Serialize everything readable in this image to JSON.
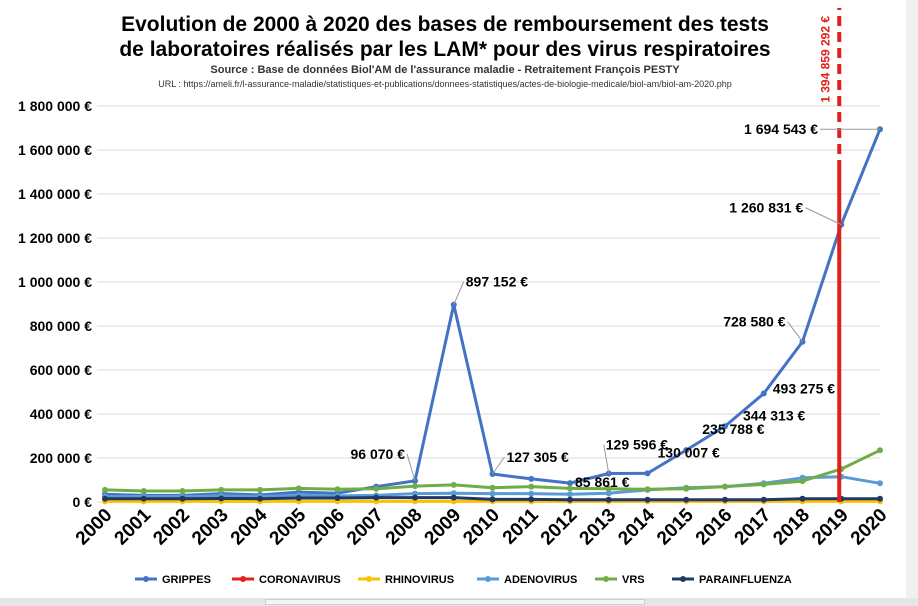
{
  "title_line1": "Evolution de 2000 à 2020 des bases de remboursement des tests",
  "title_line2": "de laboratoires réalisés par les LAM* pour des virus respiratoires",
  "subtitle": "Source : Base de données Biol'AM de l'assurance maladie - Retraitement François PESTY",
  "url": "URL : https://ameli.fr/l-assurance-maladie/statistiques-et-publications/donnees-statistiques/actes-de-biologie-medicale/biol-am/biol-am-2020.php",
  "chart_data": {
    "type": "line",
    "x": [
      "2000",
      "2001",
      "2002",
      "2003",
      "2004",
      "2005",
      "2006",
      "2007",
      "2008",
      "2009",
      "2010",
      "2011",
      "2012",
      "2013",
      "2014",
      "2015",
      "2016",
      "2017",
      "2018",
      "2019",
      "2020"
    ],
    "ylim": [
      0,
      1800000
    ],
    "yticks": [
      0,
      200000,
      400000,
      600000,
      800000,
      1000000,
      1200000,
      1400000,
      1600000,
      1800000
    ],
    "ytick_labels": [
      "0 €",
      "200 000 €",
      "400 000 €",
      "600 000 €",
      "800 000 €",
      "1 000 000 €",
      "1 200 000 €",
      "1 400 000 €",
      "1 600 000 €",
      "1 800 000 €"
    ],
    "grid": true,
    "legend_position": "bottom",
    "series": [
      {
        "name": "GRIPPES",
        "color": "#4472c4",
        "values": [
          35000,
          30000,
          30000,
          38000,
          32000,
          45000,
          40000,
          70000,
          96070,
          897152,
          127305,
          105000,
          85861,
          129596,
          130007,
          235788,
          344313,
          493275,
          728580,
          1260831,
          1694543
        ]
      },
      {
        "name": "CORONAVIRUS",
        "color": "#e0201b",
        "values": [
          null,
          null,
          null,
          null,
          null,
          null,
          null,
          null,
          null,
          null,
          null,
          null,
          null,
          null,
          null,
          null,
          null,
          null,
          null,
          null,
          null
        ]
      },
      {
        "name": "RHINOVIRUS",
        "color": "#ffc000",
        "values": [
          3000,
          3000,
          3000,
          3000,
          3000,
          3000,
          3000,
          3000,
          3000,
          3000,
          3000,
          3000,
          3000,
          3000,
          3000,
          3000,
          3000,
          3000,
          3000,
          3000,
          3000
        ]
      },
      {
        "name": "ADENOVIRUS",
        "color": "#5b9bd5",
        "values": [
          25000,
          25000,
          25000,
          28000,
          25000,
          30000,
          28000,
          30000,
          38000,
          40000,
          38000,
          38000,
          35000,
          40000,
          55000,
          65000,
          70000,
          85000,
          110000,
          115000,
          85000
        ]
      },
      {
        "name": "VRS",
        "color": "#70ad47",
        "values": [
          55000,
          50000,
          50000,
          55000,
          55000,
          62000,
          58000,
          60000,
          72000,
          78000,
          65000,
          70000,
          62000,
          60000,
          58000,
          60000,
          70000,
          80000,
          95000,
          150000,
          235000
        ]
      },
      {
        "name": "PARAINFLUENZA",
        "color": "#1f3864",
        "values": [
          15000,
          15000,
          15000,
          16000,
          15000,
          18000,
          18000,
          20000,
          20000,
          20000,
          12000,
          12000,
          10000,
          10000,
          10000,
          10000,
          10000,
          10000,
          15000,
          15000,
          15000
        ]
      }
    ],
    "data_labels": [
      {
        "series": "GRIPPES",
        "x": "2008",
        "text": "96 070 €"
      },
      {
        "series": "GRIPPES",
        "x": "2009",
        "text": "897 152 €"
      },
      {
        "series": "GRIPPES",
        "x": "2010",
        "text": "127 305 €"
      },
      {
        "series": "GRIPPES",
        "x": "2012",
        "text": "85 861 €"
      },
      {
        "series": "GRIPPES",
        "x": "2013",
        "text": "129 596 €"
      },
      {
        "series": "GRIPPES",
        "x": "2014",
        "text": "130 007 €"
      },
      {
        "series": "GRIPPES",
        "x": "2015",
        "text": "235 788 €"
      },
      {
        "series": "GRIPPES",
        "x": "2016",
        "text": "344 313 €"
      },
      {
        "series": "GRIPPES",
        "x": "2017",
        "text": "493 275 €"
      },
      {
        "series": "GRIPPES",
        "x": "2018",
        "text": "728 580 €"
      },
      {
        "series": "GRIPPES",
        "x": "2019",
        "text": "1 260 831 €"
      },
      {
        "series": "GRIPPES",
        "x": "2020",
        "text": "1 694 543 €"
      }
    ],
    "coronavirus_marker": {
      "x": "2019",
      "value_label": "1 394 859 292 €",
      "color": "#e0201b"
    }
  }
}
